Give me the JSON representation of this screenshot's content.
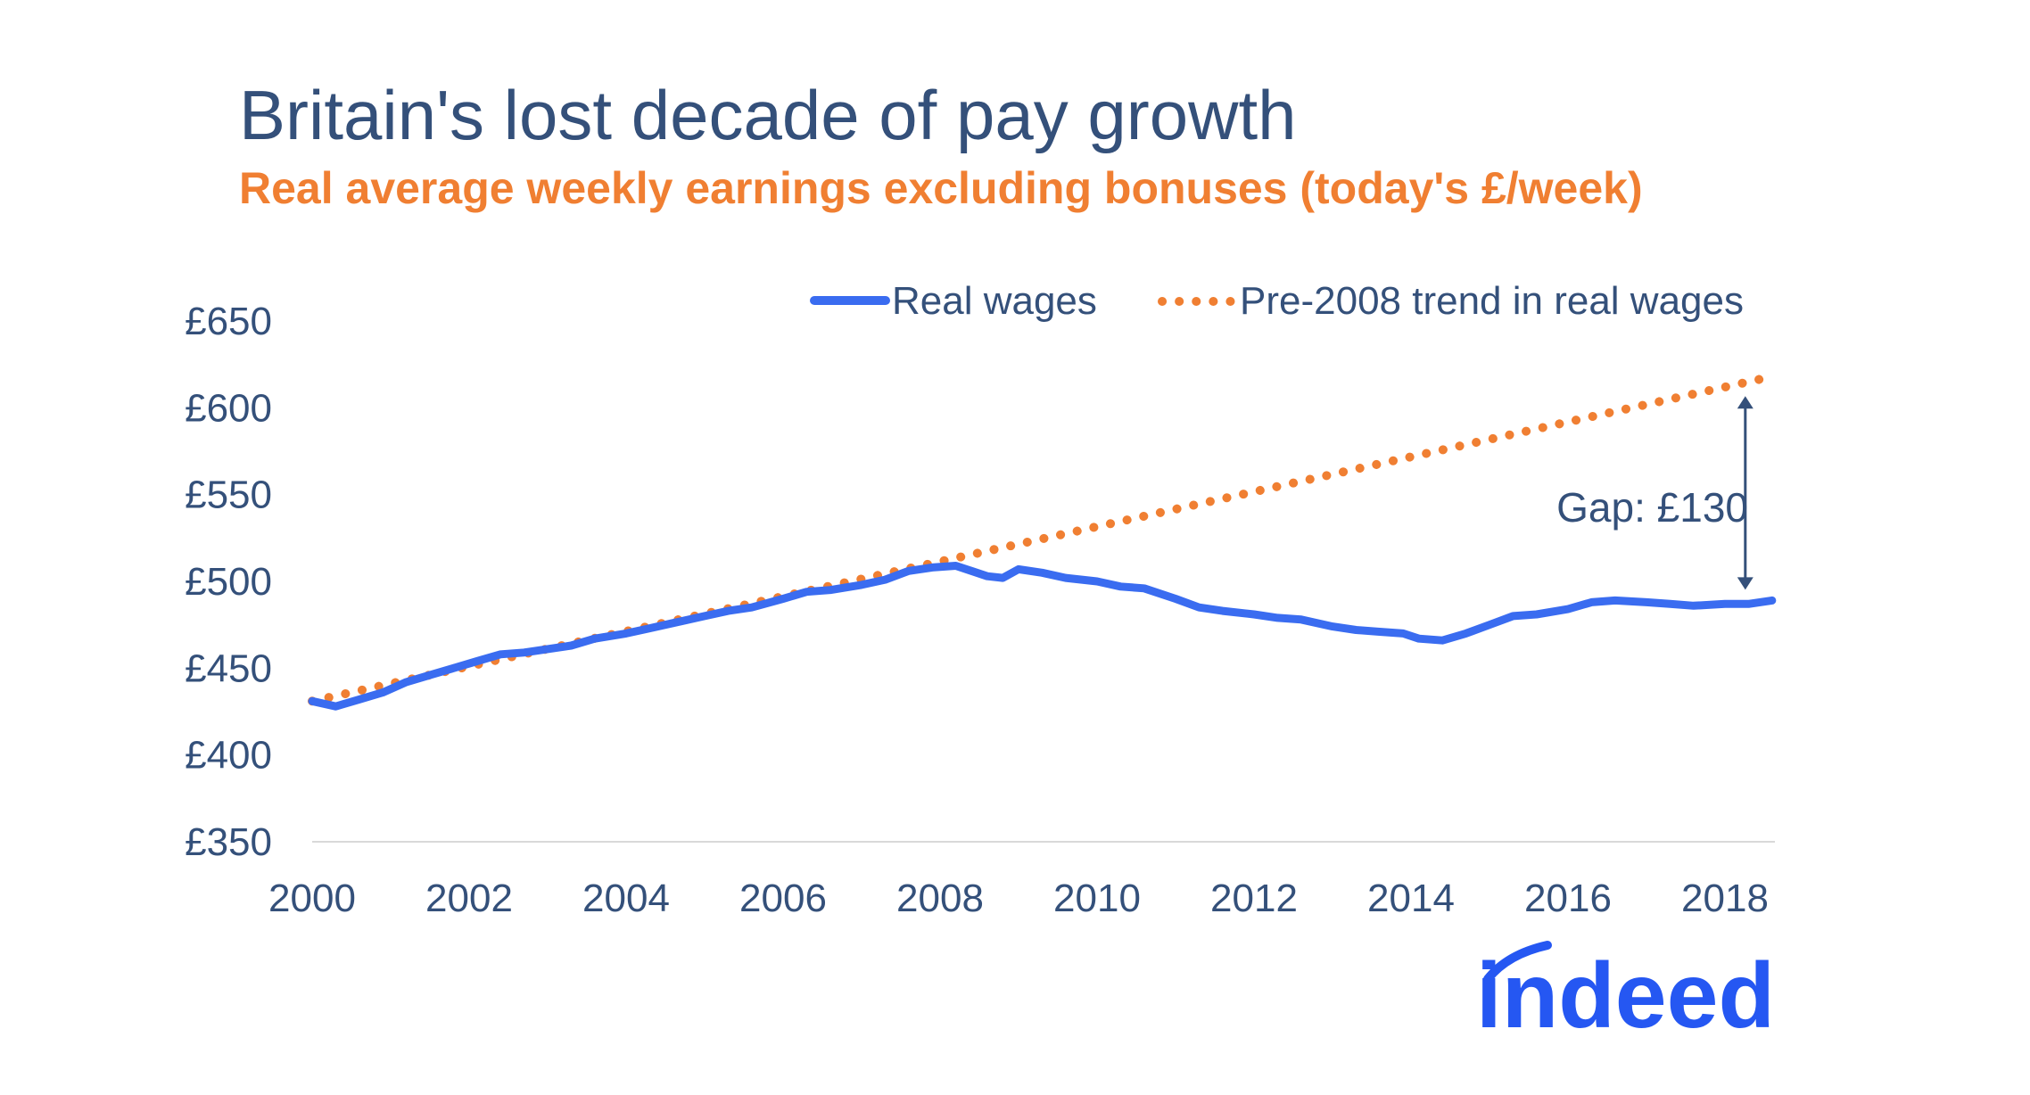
{
  "chart_data": {
    "type": "line",
    "title": "Britain's lost decade of pay growth",
    "subtitle": "Real average weekly earnings excluding bonuses (today's £/week)",
    "xlabel": "",
    "ylabel": "",
    "xlim": [
      2000,
      2018.6
    ],
    "ylim": [
      350,
      650
    ],
    "x_ticks": [
      2000,
      2002,
      2004,
      2006,
      2008,
      2010,
      2012,
      2014,
      2016,
      2018
    ],
    "y_ticks": [
      350,
      400,
      450,
      500,
      550,
      600,
      650
    ],
    "y_tick_labels": [
      "£350",
      "£400",
      "£450",
      "£500",
      "£550",
      "£600",
      "£650"
    ],
    "grid": false,
    "legend_position": "top-right",
    "series": [
      {
        "name": "Real wages",
        "style": "solid",
        "color": "#3a6cf0",
        "points": [
          [
            2000.0,
            431
          ],
          [
            2000.3,
            428
          ],
          [
            2000.6,
            432
          ],
          [
            2000.9,
            436
          ],
          [
            2001.2,
            442
          ],
          [
            2001.5,
            446
          ],
          [
            2001.8,
            450
          ],
          [
            2002.1,
            454
          ],
          [
            2002.4,
            458
          ],
          [
            2002.7,
            459
          ],
          [
            2003.0,
            461
          ],
          [
            2003.3,
            463
          ],
          [
            2003.6,
            467
          ],
          [
            2004.0,
            470
          ],
          [
            2004.3,
            473
          ],
          [
            2004.6,
            476
          ],
          [
            2005.0,
            480
          ],
          [
            2005.3,
            483
          ],
          [
            2005.6,
            485
          ],
          [
            2006.0,
            490
          ],
          [
            2006.3,
            494
          ],
          [
            2006.6,
            495
          ],
          [
            2007.0,
            498
          ],
          [
            2007.3,
            501
          ],
          [
            2007.6,
            506
          ],
          [
            2007.9,
            508
          ],
          [
            2008.2,
            509
          ],
          [
            2008.4,
            506
          ],
          [
            2008.6,
            503
          ],
          [
            2008.8,
            502
          ],
          [
            2009.0,
            507
          ],
          [
            2009.3,
            505
          ],
          [
            2009.6,
            502
          ],
          [
            2010.0,
            500
          ],
          [
            2010.3,
            497
          ],
          [
            2010.6,
            496
          ],
          [
            2011.0,
            490
          ],
          [
            2011.3,
            485
          ],
          [
            2011.6,
            483
          ],
          [
            2012.0,
            481
          ],
          [
            2012.3,
            479
          ],
          [
            2012.6,
            478
          ],
          [
            2013.0,
            474
          ],
          [
            2013.3,
            472
          ],
          [
            2013.6,
            471
          ],
          [
            2013.9,
            470
          ],
          [
            2014.1,
            467
          ],
          [
            2014.4,
            466
          ],
          [
            2014.7,
            470
          ],
          [
            2015.0,
            475
          ],
          [
            2015.3,
            480
          ],
          [
            2015.6,
            481
          ],
          [
            2016.0,
            484
          ],
          [
            2016.3,
            488
          ],
          [
            2016.6,
            489
          ],
          [
            2017.0,
            488
          ],
          [
            2017.3,
            487
          ],
          [
            2017.6,
            486
          ],
          [
            2018.0,
            487
          ],
          [
            2018.3,
            487
          ],
          [
            2018.6,
            489
          ]
        ]
      },
      {
        "name": "Pre-2008 trend in real wages",
        "style": "dotted",
        "color": "#f07f32",
        "points": [
          [
            2000.0,
            431
          ],
          [
            2018.6,
            618
          ]
        ]
      }
    ],
    "annotations": [
      {
        "text": "Gap: £130",
        "x": 2018.6,
        "y_from": 618,
        "y_to": 489
      }
    ]
  },
  "brand": {
    "logo_text": "indeed",
    "logo_color": "#2557f2"
  },
  "colors": {
    "text": "#34507a",
    "accent": "#f07f32",
    "series_blue": "#3a6cf0"
  }
}
